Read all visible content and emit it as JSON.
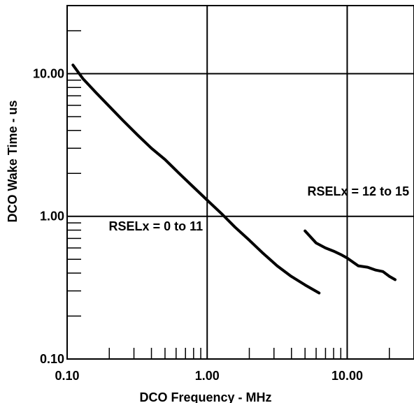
{
  "chart_data": {
    "type": "line",
    "xlabel": "DCO Frequency - MHz",
    "ylabel": "DCO Wake Time - us",
    "x_scale": "log",
    "y_scale": "log",
    "xlim": [
      0.1,
      30
    ],
    "ylim": [
      0.1,
      30
    ],
    "x_tick_labels": [
      {
        "value": 0.1,
        "label": "0.10"
      },
      {
        "value": 1,
        "label": "1.00"
      },
      {
        "value": 10,
        "label": "10.00"
      }
    ],
    "y_tick_labels": [
      {
        "value": 0.1,
        "label": "0.10"
      },
      {
        "value": 1,
        "label": "1.00"
      },
      {
        "value": 10,
        "label": "10.00"
      }
    ],
    "grid": true,
    "series": [
      {
        "name": "RSELx = 0 to 11",
        "x": [
          0.11,
          0.13,
          0.16,
          0.2,
          0.25,
          0.32,
          0.4,
          0.5,
          0.63,
          0.8,
          1.0,
          1.26,
          1.58,
          2.0,
          2.51,
          3.16,
          3.98,
          5.01,
          6.3
        ],
        "y": [
          11.5,
          9.2,
          7.4,
          5.9,
          4.7,
          3.7,
          3.0,
          2.5,
          2.0,
          1.6,
          1.3,
          1.05,
          0.84,
          0.68,
          0.55,
          0.45,
          0.38,
          0.33,
          0.29
        ]
      },
      {
        "name": "RSELx = 12 to 15",
        "x": [
          5.0,
          6.0,
          7.0,
          8.0,
          9.0,
          10.0,
          12.0,
          14.0,
          16.0,
          18.0,
          20.0,
          22.0
        ],
        "y": [
          0.79,
          0.65,
          0.6,
          0.57,
          0.54,
          0.51,
          0.45,
          0.44,
          0.42,
          0.41,
          0.38,
          0.36
        ]
      }
    ],
    "annotations": [
      {
        "text": "RSELx = 0 to 11",
        "x": 0.43,
        "y": 0.85
      },
      {
        "text": "RSELx = 12 to 15",
        "x": 12.0,
        "y": 1.5
      }
    ]
  }
}
